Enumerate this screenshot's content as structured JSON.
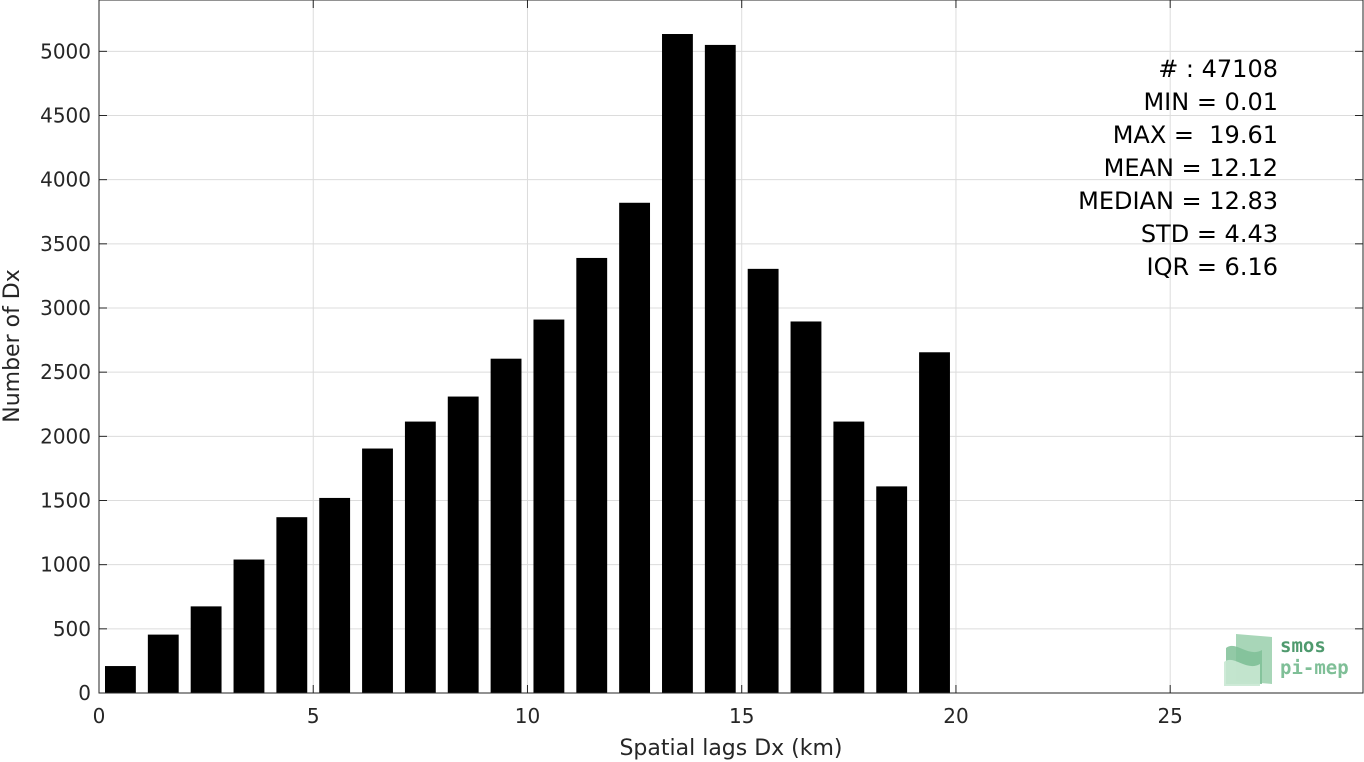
{
  "chart_data": {
    "type": "bar",
    "xlabel": "Spatial lags Dx (km)",
    "ylabel": "Number of Dx",
    "xlim": [
      0,
      29.5
    ],
    "ylim": [
      0,
      5400
    ],
    "grid": true,
    "bar_color": "#000000",
    "x_ticks": [
      0,
      5,
      10,
      15,
      20,
      25
    ],
    "y_ticks": [
      0,
      500,
      1000,
      1500,
      2000,
      2500,
      3000,
      3500,
      4000,
      4500,
      5000
    ],
    "x": [
      0.5,
      1.5,
      2.5,
      3.5,
      4.5,
      5.5,
      6.5,
      7.5,
      8.5,
      9.5,
      10.5,
      11.5,
      12.5,
      13.5,
      14.5,
      15.5,
      16.5,
      17.5,
      18.5,
      19.5
    ],
    "values": [
      210,
      455,
      675,
      1040,
      1370,
      1520,
      1905,
      2115,
      2310,
      2605,
      2910,
      3390,
      3820,
      5135,
      5050,
      3305,
      2895,
      2115,
      1610,
      2655
    ],
    "annotations": [
      "# : 47108",
      "MIN = 0.01",
      "MAX =  19.61",
      "MEAN = 12.12",
      "MEDIAN = 12.83",
      "STD = 4.43",
      "IQR = 6.16"
    ]
  },
  "logo": {
    "line1": "smos",
    "line2": "pi-mep",
    "color_dark": "#4f9a6e",
    "color_light": "#9fd1b0"
  }
}
